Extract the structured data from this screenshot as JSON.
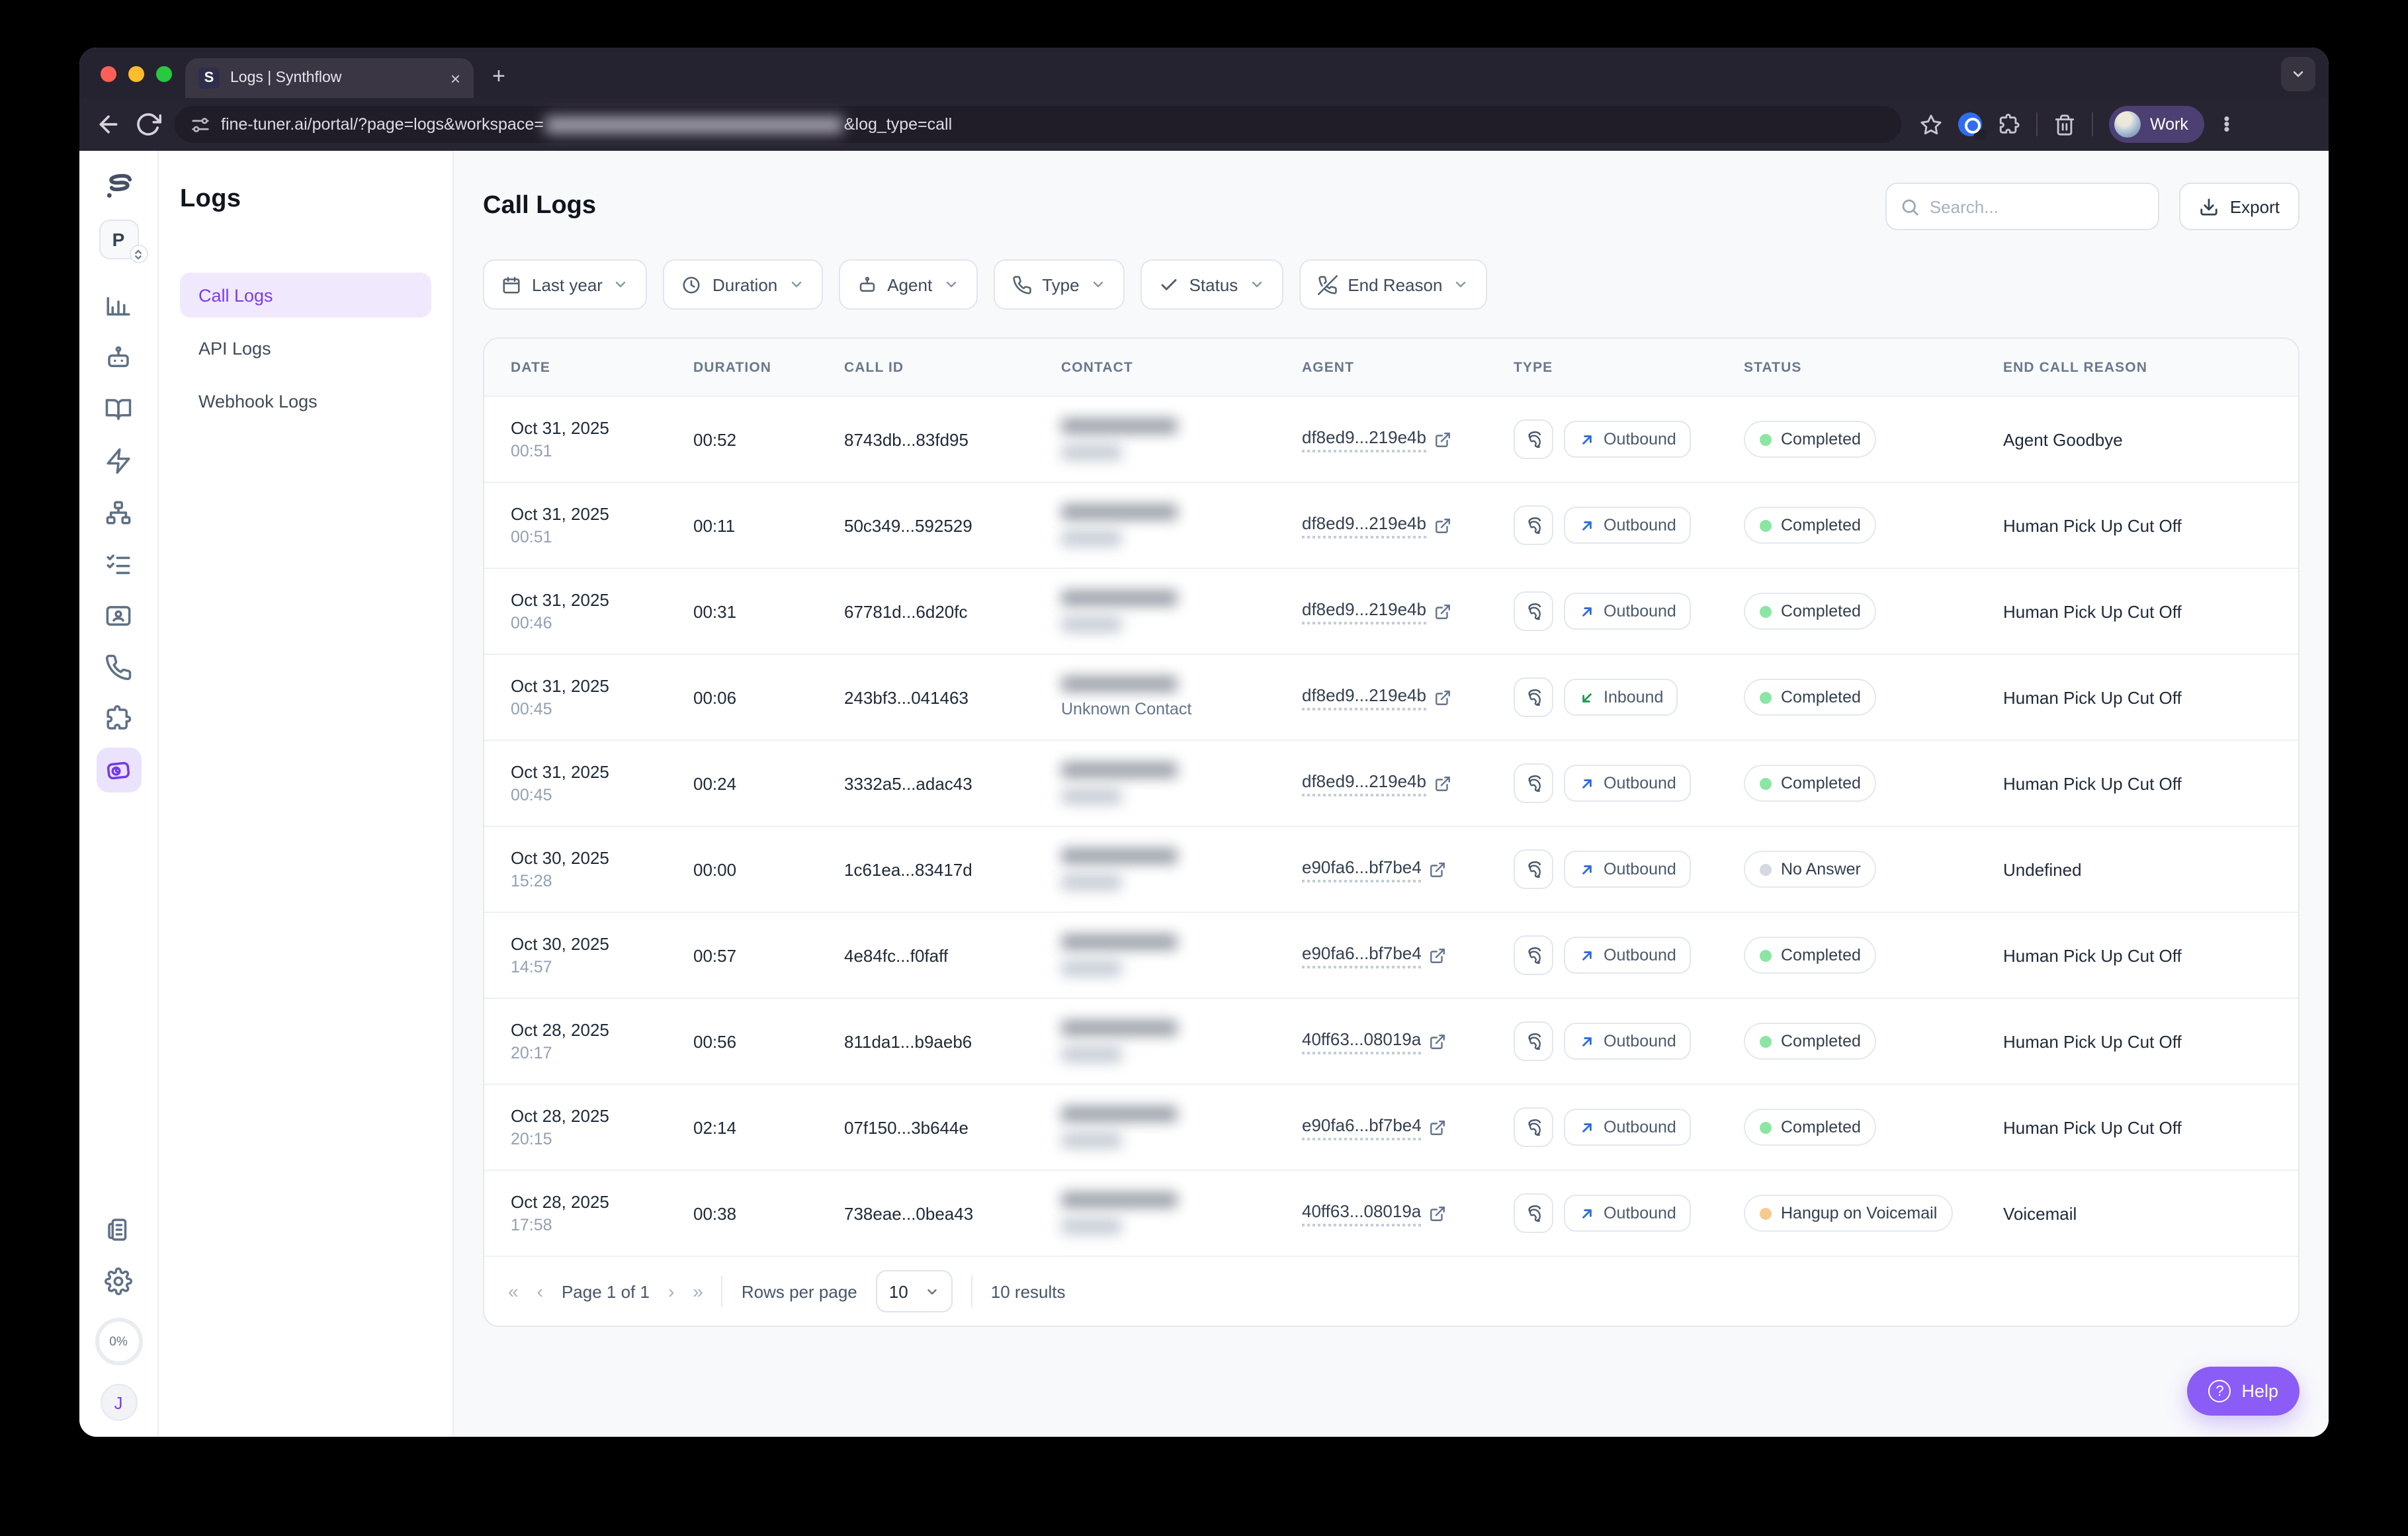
{
  "browser": {
    "tab": {
      "title": "Logs | Synthflow",
      "favicon_letter": "S",
      "close_glyph": "×",
      "new_tab_glyph": "+"
    },
    "url": {
      "prefix": "fine-tuner.ai/portal/?page=logs&workspace=",
      "redacted_segment": true,
      "suffix": "&log_type=call"
    },
    "profile": {
      "label": "Work"
    }
  },
  "sidebar": {
    "logo_letter": "S",
    "workspace_initial": "P",
    "usage": "0%",
    "avatar_initial": "J",
    "icons": [
      "analytics",
      "agents",
      "knowledge-base",
      "actions",
      "workflows",
      "campaigns",
      "contacts",
      "phone-numbers",
      "integrations",
      "logs",
      "billing",
      "settings"
    ],
    "active_icon": "logs"
  },
  "nav": {
    "heading": "Logs",
    "items": [
      {
        "label": "Call Logs",
        "active": true
      },
      {
        "label": "API Logs",
        "active": false
      },
      {
        "label": "Webhook Logs",
        "active": false
      }
    ]
  },
  "main": {
    "title": "Call Logs",
    "search": {
      "placeholder": "Search..."
    },
    "export_label": "Export",
    "filters": [
      {
        "label": "Last year",
        "icon": "calendar"
      },
      {
        "label": "Duration",
        "icon": "clock"
      },
      {
        "label": "Agent",
        "icon": "robot"
      },
      {
        "label": "Type",
        "icon": "phone"
      },
      {
        "label": "Status",
        "icon": "check"
      },
      {
        "label": "End Reason",
        "icon": "phone-off"
      }
    ],
    "table": {
      "columns": [
        "DATE",
        "DURATION",
        "CALL ID",
        "CONTACT",
        "AGENT",
        "TYPE",
        "STATUS",
        "END CALL REASON"
      ],
      "rows": [
        {
          "date": "Oct 31, 2025",
          "time": "00:51",
          "duration": "00:52",
          "call_id": "8743db...83fd95",
          "contact": {
            "phone_redacted": true,
            "name": ""
          },
          "agent_id": "df8ed9...219e4b",
          "type": "Outbound",
          "status": "Completed",
          "status_color": "green",
          "end_reason": "Agent Goodbye"
        },
        {
          "date": "Oct 31, 2025",
          "time": "00:51",
          "duration": "00:11",
          "call_id": "50c349...592529",
          "contact": {
            "phone_redacted": true,
            "name": ""
          },
          "agent_id": "df8ed9...219e4b",
          "type": "Outbound",
          "status": "Completed",
          "status_color": "green",
          "end_reason": "Human Pick Up Cut Off"
        },
        {
          "date": "Oct 31, 2025",
          "time": "00:46",
          "duration": "00:31",
          "call_id": "67781d...6d20fc",
          "contact": {
            "phone_redacted": true,
            "name": ""
          },
          "agent_id": "df8ed9...219e4b",
          "type": "Outbound",
          "status": "Completed",
          "status_color": "green",
          "end_reason": "Human Pick Up Cut Off"
        },
        {
          "date": "Oct 31, 2025",
          "time": "00:45",
          "duration": "00:06",
          "call_id": "243bf3...041463",
          "contact": {
            "phone_redacted": true,
            "name": "Unknown Contact"
          },
          "agent_id": "df8ed9...219e4b",
          "type": "Inbound",
          "status": "Completed",
          "status_color": "green",
          "end_reason": "Human Pick Up Cut Off"
        },
        {
          "date": "Oct 31, 2025",
          "time": "00:45",
          "duration": "00:24",
          "call_id": "3332a5...adac43",
          "contact": {
            "phone_redacted": true,
            "name": ""
          },
          "agent_id": "df8ed9...219e4b",
          "type": "Outbound",
          "status": "Completed",
          "status_color": "green",
          "end_reason": "Human Pick Up Cut Off"
        },
        {
          "date": "Oct 30, 2025",
          "time": "15:28",
          "duration": "00:00",
          "call_id": "1c61ea...83417d",
          "contact": {
            "phone_redacted": true,
            "name": ""
          },
          "agent_id": "e90fa6...bf7be4",
          "type": "Outbound",
          "status": "No Answer",
          "status_color": "gray",
          "end_reason": "Undefined"
        },
        {
          "date": "Oct 30, 2025",
          "time": "14:57",
          "duration": "00:57",
          "call_id": "4e84fc...f0faff",
          "contact": {
            "phone_redacted": true,
            "name": ""
          },
          "agent_id": "e90fa6...bf7be4",
          "type": "Outbound",
          "status": "Completed",
          "status_color": "green",
          "end_reason": "Human Pick Up Cut Off"
        },
        {
          "date": "Oct 28, 2025",
          "time": "20:17",
          "duration": "00:56",
          "call_id": "811da1...b9aeb6",
          "contact": {
            "phone_redacted": true,
            "name": ""
          },
          "agent_id": "40ff63...08019a",
          "type": "Outbound",
          "status": "Completed",
          "status_color": "green",
          "end_reason": "Human Pick Up Cut Off"
        },
        {
          "date": "Oct 28, 2025",
          "time": "20:15",
          "duration": "02:14",
          "call_id": "07f150...3b644e",
          "contact": {
            "phone_redacted": true,
            "name": ""
          },
          "agent_id": "e90fa6...bf7be4",
          "type": "Outbound",
          "status": "Completed",
          "status_color": "green",
          "end_reason": "Human Pick Up Cut Off"
        },
        {
          "date": "Oct 28, 2025",
          "time": "17:58",
          "duration": "00:38",
          "call_id": "738eae...0bea43",
          "contact": {
            "phone_redacted": true,
            "name": ""
          },
          "agent_id": "40ff63...08019a",
          "type": "Outbound",
          "status": "Hangup on Voicemail",
          "status_color": "orange",
          "end_reason": "Voicemail"
        }
      ]
    },
    "pagination": {
      "first_glyph": "«",
      "prev_glyph": "‹",
      "next_glyph": "›",
      "last_glyph": "»",
      "page_label": "Page 1 of 1",
      "rows_per_page_label": "Rows per page",
      "rows_per_page_value": "10",
      "results_label": "10 results"
    }
  },
  "help": {
    "label": "Help"
  }
}
